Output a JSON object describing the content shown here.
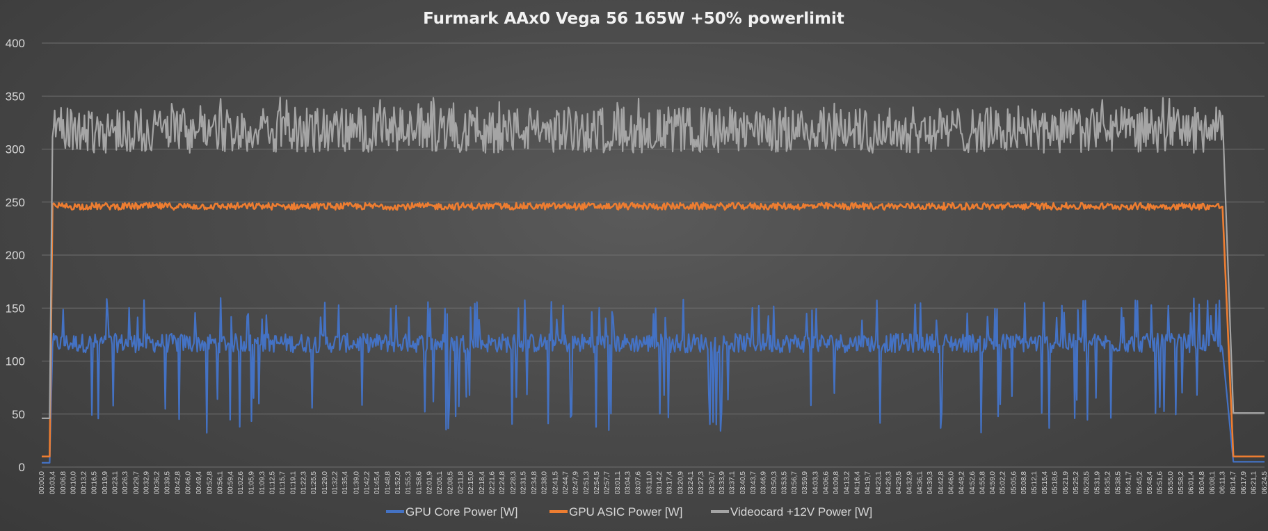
{
  "chart_data": {
    "type": "line",
    "title": "Furmark AAx0 Vega 56 165W +50% powerlimit",
    "xlabel": "",
    "ylabel": "",
    "ylim": [
      0,
      400
    ],
    "yticks": [
      0,
      50,
      100,
      150,
      200,
      250,
      300,
      350,
      400
    ],
    "grid": true,
    "legend_position": "bottom",
    "xticks": [
      "00:00,0",
      "00:03,4",
      "00:06,8",
      "00:10,0",
      "00:13,2",
      "00:16,5",
      "00:19,9",
      "00:23,1",
      "00:26,3",
      "00:29,7",
      "00:32,9",
      "00:36,2",
      "00:39,5",
      "00:42,8",
      "00:46,0",
      "00:49,4",
      "00:52,8",
      "00:56,1",
      "00:59,4",
      "01:02,6",
      "01:05,9",
      "01:09,3",
      "01:12,5",
      "01:15,7",
      "01:19,1",
      "01:22,3",
      "01:25,5",
      "01:29,0",
      "01:32,2",
      "01:35,4",
      "01:39,0",
      "01:42,2",
      "01:45,4",
      "01:48,8",
      "01:52,0",
      "01:55,3",
      "01:58,6",
      "02:01,9",
      "02:05,1",
      "02:08,5",
      "02:11,8",
      "02:15,0",
      "02:18,4",
      "02:21,6",
      "02:24,8",
      "02:28,3",
      "02:31,5",
      "02:34,8",
      "02:38,0",
      "02:41,5",
      "02:44,7",
      "02:47,9",
      "02:51,3",
      "02:54,5",
      "02:57,7",
      "03:01,1",
      "03:04,3",
      "03:07,6",
      "03:11,0",
      "03:14,2",
      "03:17,4",
      "03:20,9",
      "03:24,1",
      "03:27,3",
      "03:30,7",
      "03:33,9",
      "03:37,1",
      "03:40,5",
      "03:43,7",
      "03:46,9",
      "03:50,3",
      "03:53,5",
      "03:56,7",
      "03:59,9",
      "04:03,3",
      "04:06,6",
      "04:09,8",
      "04:13,2",
      "04:16,4",
      "04:19,7",
      "04:23,1",
      "04:26,3",
      "04:29,5",
      "04:32,9",
      "04:36,1",
      "04:39,3",
      "04:42,8",
      "04:46,0",
      "04:49,2",
      "04:52,6",
      "04:55,8",
      "04:59,0",
      "05:02,2",
      "05:05,6",
      "05:08,8",
      "05:12,1",
      "05:15,4",
      "05:18,6",
      "05:21,9",
      "05:25,2",
      "05:28,5",
      "05:31,9",
      "05:35,2",
      "05:38,5",
      "05:41,7",
      "05:45,2",
      "05:48,4",
      "05:51,6",
      "05:55,0",
      "05:58,2",
      "06:01,4",
      "06:04,8",
      "06:08,1",
      "06:11,3",
      "06:14,7",
      "06:17,9",
      "06:21,1",
      "06:24,5"
    ],
    "series": [
      {
        "name": "GPU Core Power [W]",
        "color": "#4472C4",
        "segments": [
          {
            "from": "00:00,0",
            "to": "00:02,5",
            "level": 4
          },
          {
            "from": "00:03,4",
            "to": "06:11,3",
            "level": 117,
            "upper": 160,
            "lower": 32
          },
          {
            "from": "06:14,7",
            "to": "06:24,5",
            "level": 5
          }
        ]
      },
      {
        "name": "GPU ASIC Power [W]",
        "color": "#ED7D31",
        "segments": [
          {
            "from": "00:00,0",
            "to": "00:02,5",
            "level": 10
          },
          {
            "from": "00:03,4",
            "to": "06:11,3",
            "level": 246,
            "upper": 250,
            "lower": 242
          },
          {
            "from": "06:14,7",
            "to": "06:24,5",
            "level": 10
          }
        ]
      },
      {
        "name": "Videocard +12V Power [W]",
        "color": "#A5A5A5",
        "segments": [
          {
            "from": "00:00,0",
            "to": "00:02,5",
            "level": 46
          },
          {
            "from": "00:03,4",
            "to": "06:11,3",
            "level": 318,
            "upper": 350,
            "lower": 288
          },
          {
            "from": "06:14,7",
            "to": "06:24,5",
            "level": 51
          }
        ]
      }
    ]
  }
}
